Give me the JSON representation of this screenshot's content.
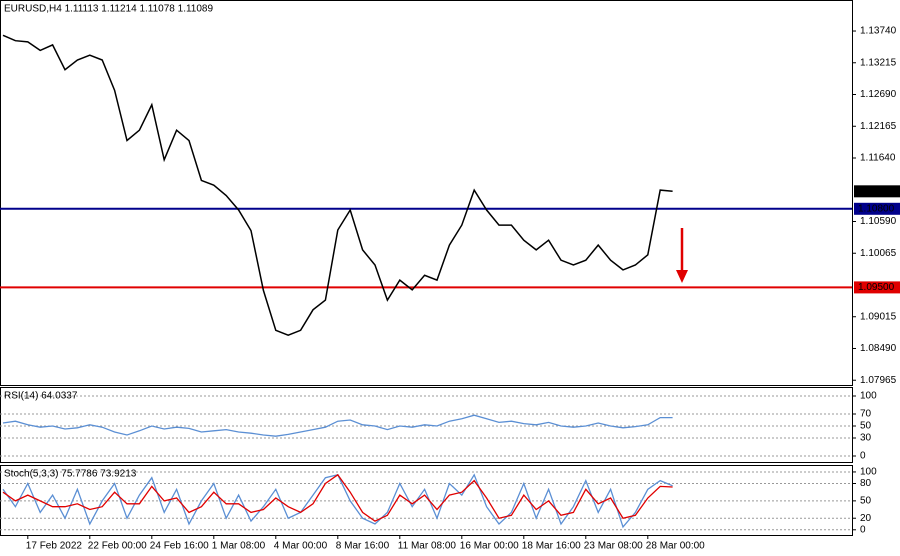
{
  "chart_data": [
    {
      "type": "line",
      "title": "EURUSD,H4  1.11113 1.11214 1.11078 1.11089",
      "categories": [
        null,
        null,
        "17 Feb 2022",
        null,
        null,
        null,
        null,
        "22 Feb 00:00",
        null,
        null,
        null,
        null,
        "24 Feb 16:00",
        null,
        null,
        null,
        null,
        "1 Mar 08:00",
        null,
        null,
        null,
        null,
        "4 Mar 00:00",
        null,
        null,
        null,
        null,
        "8 Mar 16:00",
        null,
        null,
        null,
        null,
        "11 Mar 08:00",
        null,
        null,
        null,
        null,
        "16 Mar 00:00",
        null,
        null,
        null,
        null,
        "18 Mar 16:00",
        null,
        null,
        null,
        null,
        "23 Mar 08:00",
        null,
        null,
        null,
        null,
        "28 Mar 00:00",
        null,
        null
      ],
      "series": [
        {
          "color": "#000000",
          "values": [
            1.1367,
            1.1358,
            1.1356,
            1.1342,
            1.1351,
            1.131,
            1.1326,
            1.1334,
            1.1326,
            1.1276,
            1.1193,
            1.121,
            1.1252,
            1.1161,
            1.121,
            1.1193,
            1.1127,
            1.1119,
            1.1102,
            1.1078,
            1.1044,
            1.0945,
            1.0879,
            1.0871,
            1.0879,
            1.0913,
            1.0929,
            1.1045,
            1.1078,
            1.1012,
            1.0987,
            1.0929,
            1.0962,
            1.0946,
            1.097,
            1.0962,
            1.102,
            1.1053,
            1.1111,
            1.1078,
            1.1053,
            1.1053,
            1.1028,
            1.1012,
            1.1028,
            1.0995,
            1.0987,
            1.0995,
            1.102,
            1.0995,
            1.0979,
            1.0987,
            1.1004,
            1.1111,
            1.1109
          ]
        }
      ],
      "ylim": [
        1.07886,
        1.14253
      ],
      "yticks": [
        {
          "value": 1.1374,
          "label": "1.13740"
        },
        {
          "value": 1.13215,
          "label": "1.13215"
        },
        {
          "value": 1.1269,
          "label": "1.12690"
        },
        {
          "value": 1.12165,
          "label": "1.12165"
        },
        {
          "value": 1.1164,
          "label": "1.11640"
        },
        {
          "value": 1.1059,
          "label": "1.10590"
        },
        {
          "value": 1.10065,
          "label": "1.10065"
        },
        {
          "value": 1.09015,
          "label": "1.09015"
        },
        {
          "value": 1.0849,
          "label": "1.08490"
        },
        {
          "value": 1.07965,
          "label": "1.07965"
        }
      ],
      "hlines": [
        {
          "value": 1.108,
          "label": "1.10800",
          "color": "#00008b"
        },
        {
          "value": 1.095,
          "label": "1.09500",
          "color": "#e00000"
        },
        {
          "value": 1.11089,
          "label": "1.11089",
          "color": "#000000"
        }
      ]
    },
    {
      "type": "line",
      "title": "RSI(14) 64.0337",
      "series": [
        {
          "color": "#5b8fd4",
          "values": [
            55,
            58,
            52,
            48,
            50,
            45,
            47,
            52,
            48,
            40,
            35,
            42,
            50,
            45,
            48,
            46,
            40,
            42,
            44,
            40,
            38,
            35,
            33,
            36,
            40,
            44,
            48,
            58,
            60,
            52,
            50,
            44,
            50,
            48,
            52,
            50,
            58,
            62,
            68,
            62,
            56,
            58,
            54,
            52,
            56,
            50,
            48,
            50,
            55,
            50,
            47,
            49,
            52,
            64,
            64
          ]
        }
      ],
      "ylim": [
        -10,
        115
      ],
      "yticks": [
        100,
        70,
        50,
        30,
        0
      ]
    },
    {
      "type": "line",
      "title": "Stoch(5,3,3) 75.7786 73.9213",
      "series": [
        {
          "color": "#5b8fd4",
          "values": [
            70,
            40,
            80,
            30,
            60,
            20,
            70,
            10,
            50,
            80,
            20,
            60,
            90,
            30,
            70,
            10,
            50,
            80,
            20,
            60,
            15,
            40,
            70,
            20,
            30,
            60,
            90,
            95,
            50,
            20,
            10,
            30,
            80,
            40,
            70,
            20,
            80,
            60,
            95,
            40,
            10,
            30,
            80,
            20,
            70,
            10,
            40,
            85,
            30,
            70,
            5,
            30,
            70,
            85,
            76
          ]
        },
        {
          "color": "#e00000",
          "values": [
            65,
            50,
            60,
            50,
            40,
            40,
            45,
            35,
            40,
            65,
            45,
            45,
            75,
            50,
            55,
            30,
            40,
            65,
            45,
            45,
            30,
            35,
            55,
            40,
            30,
            45,
            80,
            95,
            65,
            30,
            15,
            25,
            60,
            45,
            60,
            35,
            60,
            65,
            85,
            55,
            20,
            25,
            60,
            35,
            50,
            25,
            30,
            70,
            45,
            55,
            20,
            25,
            55,
            75,
            74
          ]
        }
      ],
      "ylim": [
        -9,
        112
      ],
      "yticks": [
        100,
        80,
        50,
        20,
        0
      ]
    }
  ]
}
